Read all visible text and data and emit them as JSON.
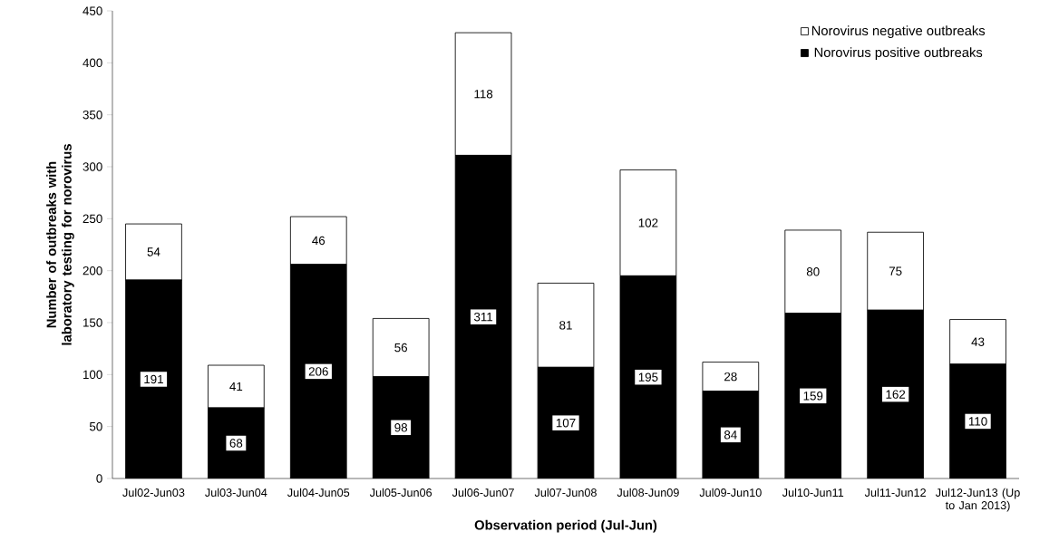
{
  "chart_data": {
    "type": "bar",
    "stacked": true,
    "xlabel": "Observation period (Jul-Jun)",
    "ylabel": "Number of outbreaks with laboratory testing for norovirus",
    "categories": [
      "Jul02-Jun03",
      "Jul03-Jun04",
      "Jul04-Jun05",
      "Jul05-Jun06",
      "Jul06-Jun07",
      "Jul07-Jun08",
      "Jul08-Jun09",
      "Jul09-Jun10",
      "Jul10-Jun11",
      "Jul11-Jun12",
      "Jul12-Jun13 (Up to Jan 2013)"
    ],
    "series": [
      {
        "name": "Norovirus positive outbreaks",
        "color": "#000000",
        "values": [
          191,
          68,
          206,
          98,
          311,
          107,
          195,
          84,
          159,
          162,
          110
        ],
        "value_labels": [
          "191",
          "68",
          "206",
          "98",
          "311",
          "107",
          "195",
          "84",
          "159",
          "162",
          "110"
        ]
      },
      {
        "name": "Norovirus negative outbreaks",
        "color": "#ffffff",
        "values": [
          54,
          41,
          46,
          56,
          118,
          81,
          102,
          28,
          80,
          75,
          43
        ],
        "value_labels": [
          "54",
          "41",
          "46",
          "56",
          "118",
          "81",
          "102",
          "28",
          "80",
          "75",
          "43"
        ]
      }
    ],
    "ylim": [
      0,
      450
    ],
    "yticks": [
      0,
      50,
      100,
      150,
      200,
      250,
      300,
      350,
      400,
      450
    ],
    "legend": "top right"
  }
}
